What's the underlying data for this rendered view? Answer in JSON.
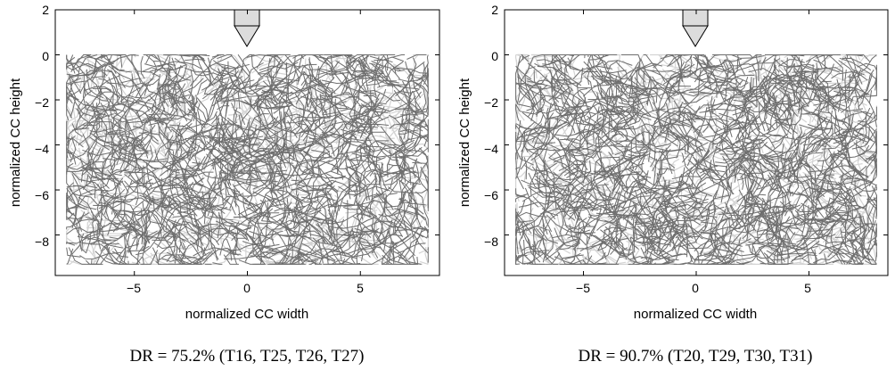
{
  "chart_data": [
    {
      "type": "network-plot",
      "xlabel": "normalized CC width",
      "ylabel": "normalized CC height",
      "x_ticks": [
        "−5",
        "0",
        "5"
      ],
      "y_ticks": [
        "2",
        "0",
        "−2",
        "−4",
        "−6",
        "−8"
      ],
      "xlim": [
        -8.5,
        8.5
      ],
      "ylim": [
        -9.8,
        2
      ],
      "caption": "DR = 75.2% (T16, T25, T26, T27)",
      "electrode_x": 0,
      "network_extent": {
        "x": [
          -8,
          8
        ],
        "y": [
          -9.3,
          0
        ]
      },
      "colors": {
        "fiber_dark": "#6e6e6e",
        "fiber_light": "#d4d4d4",
        "electrode_fill": "#dcdcdc"
      }
    },
    {
      "type": "network-plot",
      "xlabel": "normalized CC width",
      "ylabel": "normalized CC height",
      "x_ticks": [
        "−5",
        "0",
        "5"
      ],
      "y_ticks": [
        "2",
        "0",
        "−2",
        "−4",
        "−6",
        "−8"
      ],
      "xlim": [
        -8.5,
        8.5
      ],
      "ylim": [
        -9.8,
        2
      ],
      "caption": "DR = 90.7% (T20, T29, T30, T31)",
      "electrode_x": 0,
      "network_extent": {
        "x": [
          -8,
          8
        ],
        "y": [
          -9.3,
          0
        ]
      },
      "colors": {
        "fiber_dark": "#6e6e6e",
        "fiber_light": "#d4d4d4",
        "electrode_fill": "#dcdcdc"
      }
    }
  ]
}
